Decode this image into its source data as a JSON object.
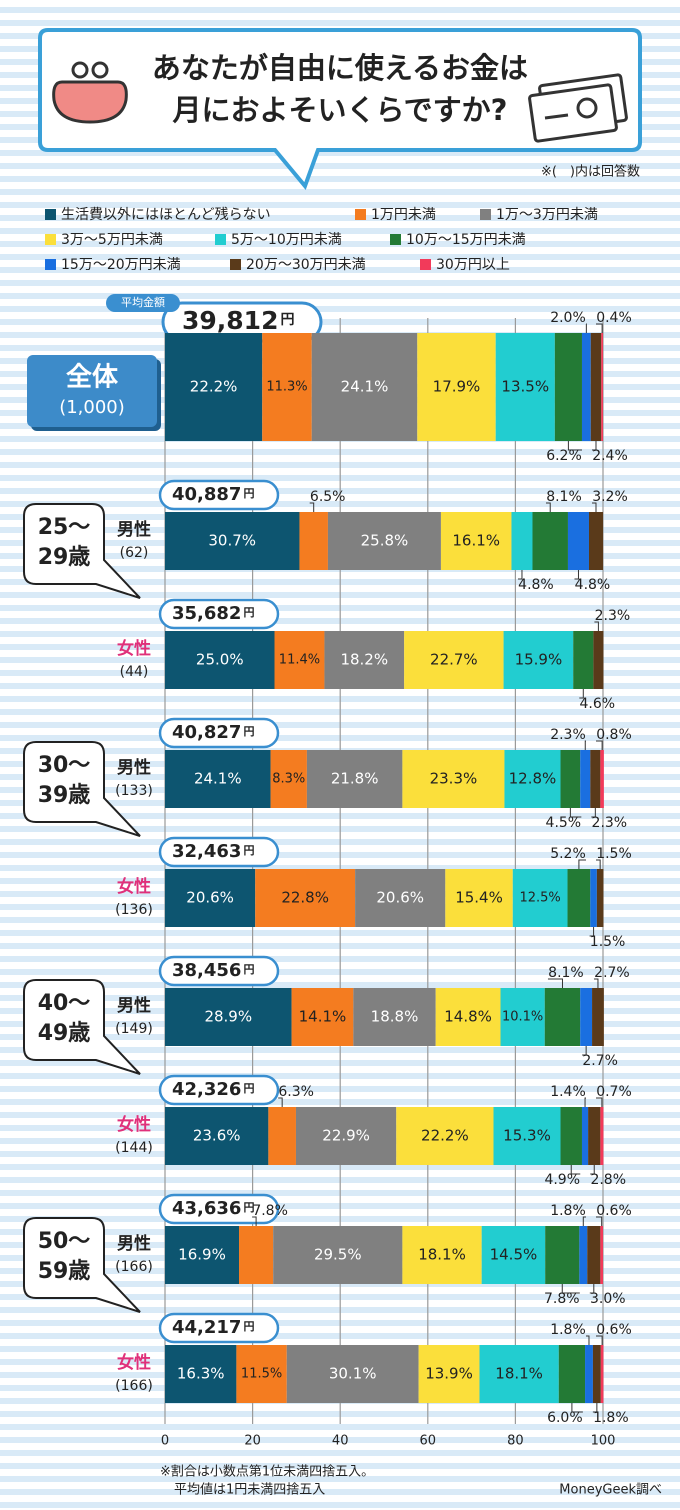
{
  "title": [
    "あなたが自由に使えるお金は",
    "月におよそいくらですか?"
  ],
  "note": "※(　)内は回答数",
  "footnotes": [
    "※割合は小数点第1位未満四捨五入。",
    "平均値は1円未満四捨五入"
  ],
  "source": "MoneyGeek調べ",
  "chart_data": {
    "type": "bar",
    "orientation": "horizontal",
    "stacked": true,
    "categories": [
      "全体",
      "男性",
      "女性",
      "男性",
      "女性",
      "男性",
      "女性",
      "男性",
      "女性"
    ],
    "counts": [
      "(1,000)",
      "(62)",
      "(44)",
      "(133)",
      "(136)",
      "(149)",
      "(144)",
      "(166)",
      "(166)"
    ],
    "age_groups": [
      [
        "25～",
        "29歳"
      ],
      [
        "30～",
        "39歳"
      ],
      [
        "40～",
        "49歳"
      ],
      [
        "50～",
        "59歳"
      ]
    ],
    "average_label": "平均金額",
    "average_unit": "円",
    "averages": [
      "39,812",
      "40,887",
      "35,682",
      "40,827",
      "32,463",
      "38,456",
      "42,326",
      "43,636",
      "44,217"
    ],
    "xlim": [
      0,
      100
    ],
    "xticks": [
      0,
      20,
      40,
      60,
      80,
      100
    ],
    "grid": true,
    "series": [
      {
        "name": "生活費以外にはほとんど残らない",
        "color": "#0d5570",
        "values": [
          22.2,
          30.7,
          25.0,
          24.1,
          20.6,
          28.9,
          23.6,
          16.9,
          16.3
        ],
        "value_labels": [
          "22.2%",
          "30.7%",
          "25.0%",
          "24.1%",
          "20.6%",
          "28.9%",
          "23.6%",
          "16.9%",
          "16.3%"
        ]
      },
      {
        "name": "1万円未満",
        "color": "#f47c20",
        "values": [
          11.3,
          6.5,
          11.4,
          8.3,
          22.8,
          14.1,
          6.3,
          7.8,
          11.5
        ],
        "value_labels": [
          "11.3%",
          "6.5%",
          "11.4%",
          "8.3%",
          "22.8%",
          "14.1%",
          "6.3%",
          "7.8%",
          "11.5%"
        ]
      },
      {
        "name": "1万～3万円未満",
        "color": "#808080",
        "values": [
          24.1,
          25.8,
          18.2,
          21.8,
          20.6,
          18.8,
          22.9,
          29.5,
          30.1
        ],
        "value_labels": [
          "24.1%",
          "25.8%",
          "18.2%",
          "21.8%",
          "20.6%",
          "18.8%",
          "22.9%",
          "29.5%",
          "30.1%"
        ]
      },
      {
        "name": "3万～5万円未満",
        "color": "#fbdf3b",
        "values": [
          17.9,
          16.1,
          22.7,
          23.3,
          15.4,
          14.8,
          22.2,
          18.1,
          13.9
        ],
        "value_labels": [
          "17.9%",
          "16.1%",
          "22.7%",
          "23.3%",
          "15.4%",
          "14.8%",
          "22.2%",
          "18.1%",
          "13.9%"
        ]
      },
      {
        "name": "5万～10万円未満",
        "color": "#22cdd0",
        "values": [
          13.5,
          4.8,
          15.9,
          12.8,
          12.5,
          10.1,
          15.3,
          14.5,
          18.1
        ],
        "value_labels": [
          "13.5%",
          "4.8%",
          "15.9%",
          "12.8%",
          "12.5%",
          "10.1%",
          "15.3%",
          "14.5%",
          "18.1%"
        ]
      },
      {
        "name": "10万～15万円未満",
        "color": "#237a35",
        "values": [
          6.2,
          8.1,
          4.6,
          4.5,
          5.2,
          8.1,
          4.9,
          7.8,
          6.0
        ],
        "value_labels": [
          "6.2%",
          "8.1%",
          "4.6%",
          "4.5%",
          "5.2%",
          "8.1%",
          "4.9%",
          "7.8%",
          "6.0%"
        ]
      },
      {
        "name": "15万～20万円未満",
        "color": "#1a6fe0",
        "values": [
          2.0,
          4.8,
          0,
          2.3,
          1.5,
          2.7,
          1.4,
          1.8,
          1.8
        ],
        "value_labels": [
          "2.0%",
          "4.8%",
          null,
          "2.3%",
          "1.5%",
          "2.7%",
          "1.4%",
          "1.8%",
          "1.8%"
        ]
      },
      {
        "name": "20万～30万円未満",
        "color": "#5a3a1a",
        "values": [
          2.4,
          3.2,
          2.3,
          2.3,
          1.5,
          2.7,
          2.8,
          3.0,
          1.8
        ],
        "value_labels": [
          "2.4%",
          "3.2%",
          "2.3%",
          "2.3%",
          "1.5%",
          "2.7%",
          "2.8%",
          "3.0%",
          "1.8%"
        ]
      },
      {
        "name": "30万円以上",
        "color": "#f23a5a",
        "values": [
          0.4,
          0,
          0,
          0.8,
          0,
          0,
          0.7,
          0.6,
          0.6
        ],
        "value_labels": [
          "0.4%",
          null,
          null,
          "0.8%",
          null,
          null,
          "0.7%",
          "0.6%",
          "0.6%"
        ]
      }
    ]
  }
}
